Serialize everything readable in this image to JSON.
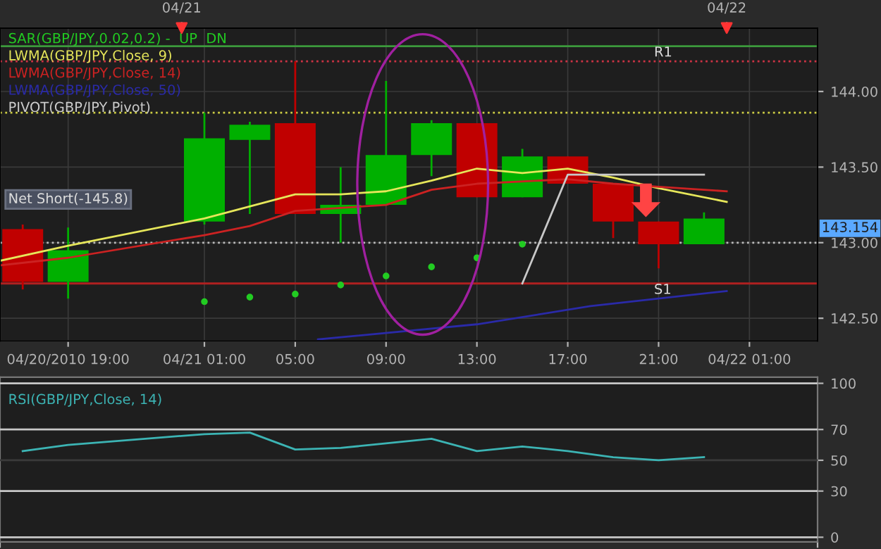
{
  "chart_data": [
    {
      "type": "candlestick",
      "x": [
        "2010-04-20T17:00",
        "2010-04-20T19:00",
        "2010-04-21T01:00",
        "2010-04-21T03:00",
        "2010-04-21T05:00",
        "2010-04-21T07:00",
        "2010-04-21T09:00",
        "2010-04-21T11:00",
        "2010-04-21T13:00",
        "2010-04-21T15:00",
        "2010-04-21T17:00",
        "2010-04-21T19:00",
        "2010-04-21T21:00",
        "2010-04-21T23:00"
      ],
      "ohlc": [
        [
          143.09,
          143.12,
          142.69,
          142.74
        ],
        [
          142.74,
          143.1,
          142.63,
          142.95
        ],
        [
          143.14,
          143.86,
          143.12,
          143.69
        ],
        [
          143.68,
          143.8,
          143.19,
          143.78
        ],
        [
          143.79,
          144.2,
          143.19,
          143.19
        ],
        [
          143.19,
          143.5,
          143.0,
          143.25
        ],
        [
          143.25,
          144.07,
          143.25,
          143.58
        ],
        [
          143.58,
          143.81,
          143.44,
          143.79
        ],
        [
          143.79,
          143.79,
          143.3,
          143.3
        ],
        [
          143.3,
          143.62,
          143.3,
          143.57
        ],
        [
          143.57,
          143.57,
          143.39,
          143.39
        ],
        [
          143.39,
          143.39,
          143.03,
          143.14
        ],
        [
          143.14,
          143.14,
          142.83,
          142.99
        ],
        [
          142.99,
          143.2,
          142.99,
          143.16
        ]
      ],
      "colors": [
        "#c00000",
        "#00b000",
        "#00b000",
        "#00b000",
        "#c00000",
        "#00b000",
        "#00b000",
        "#00b000",
        "#c00000",
        "#00b000",
        "#c00000",
        "#c00000",
        "#c00000",
        "#00b000"
      ],
      "series": [
        {
          "name": "SAR(GBP/JPY,0.02,0.2) -  UP  DN",
          "type": "scatter",
          "marker": "circle",
          "color": "#22cc22",
          "x": [
            "2010-04-21T01:00",
            "2010-04-21T03:00",
            "2010-04-21T05:00",
            "2010-04-21T07:00",
            "2010-04-21T09:00",
            "2010-04-21T11:00",
            "2010-04-21T13:00",
            "2010-04-21T15:00"
          ],
          "values": [
            142.61,
            142.64,
            142.66,
            142.72,
            142.78,
            142.84,
            142.9,
            142.99
          ]
        },
        {
          "name": "LWMA(GBP/JPY,Close, 9)",
          "type": "line",
          "color": "#e6e65a",
          "x": [
            "2010-04-20T16:00",
            "2010-04-20T19:00",
            "2010-04-21T01:00",
            "2010-04-21T05:00",
            "2010-04-21T07:00",
            "2010-04-21T09:00",
            "2010-04-21T11:00",
            "2010-04-21T13:00",
            "2010-04-21T15:00",
            "2010-04-21T17:00",
            "2010-04-21T19:00",
            "2010-04-21T21:00",
            "2010-04-22T00:00"
          ],
          "values": [
            142.88,
            142.98,
            143.16,
            143.32,
            143.32,
            143.34,
            143.41,
            143.49,
            143.46,
            143.49,
            143.43,
            143.36,
            143.27
          ]
        },
        {
          "name": "LWMA(GBP/JPY,Close, 14)",
          "type": "line",
          "color": "#cc2222",
          "x": [
            "2010-04-20T16:00",
            "2010-04-20T19:00",
            "2010-04-21T01:00",
            "2010-04-21T03:00",
            "2010-04-21T05:00",
            "2010-04-21T09:00",
            "2010-04-21T11:00",
            "2010-04-21T13:00",
            "2010-04-21T17:00",
            "2010-04-21T19:00",
            "2010-04-21T21:00",
            "2010-04-22T00:00"
          ],
          "values": [
            142.85,
            142.9,
            143.05,
            143.11,
            143.21,
            143.25,
            143.35,
            143.39,
            143.42,
            143.39,
            143.37,
            143.34
          ]
        },
        {
          "name": "LWMA(GBP/JPY,Close, 50)",
          "type": "line",
          "color": "#2a2aa8",
          "x": [
            "2010-04-21T06:00",
            "2010-04-21T13:00",
            "2010-04-21T18:00",
            "2010-04-22T00:00"
          ],
          "values": [
            142.36,
            142.46,
            142.58,
            142.68
          ]
        },
        {
          "type": "line",
          "color": "#c8c8c8",
          "x": [
            "2010-04-21T15:00",
            "2010-04-21T17:00",
            "2010-04-21T23:00"
          ],
          "values": [
            142.73,
            143.45,
            143.45
          ]
        }
      ],
      "ref_lines": [
        {
          "axis": "y",
          "value": 144.3,
          "label": "R1",
          "color": "#3c9a3c",
          "line_style": "solid"
        },
        {
          "axis": "y",
          "value": 144.2,
          "color": "#cc3344",
          "line_style": "dotted"
        },
        {
          "axis": "y",
          "value": 143.86,
          "color": "#cccc44",
          "line_style": "dotted"
        },
        {
          "axis": "y",
          "value": 143.0,
          "color": "#bbbbbb",
          "line_style": "dotted"
        },
        {
          "axis": "y",
          "value": 142.73,
          "label": "S1",
          "color": "#b02020",
          "line_style": "solid"
        }
      ],
      "annotations": [
        "PIVOT(GBP/JPY,Pivot)",
        "Net Short(-145.8)",
        "143.154"
      ],
      "xlim": [
        "2010-04-20T16:00",
        "2010-04-22T04:00"
      ],
      "xticks": [
        {
          "value": "2010-04-20T19:00",
          "label": "04/20/2010 19:00"
        },
        {
          "value": "2010-04-21T01:00",
          "label": "04/21 01:00"
        },
        {
          "value": "2010-04-21T05:00",
          "label": "05:00"
        },
        {
          "value": "2010-04-21T09:00",
          "label": "09:00"
        },
        {
          "value": "2010-04-21T13:00",
          "label": "13:00"
        },
        {
          "value": "2010-04-21T17:00",
          "label": "17:00"
        },
        {
          "value": "2010-04-21T21:00",
          "label": "21:00"
        },
        {
          "value": "2010-04-22T01:00",
          "label": "04/22 01:00"
        }
      ],
      "x2lim": [
        "2010-04-20T16:00",
        "2010-04-22T04:00"
      ],
      "x2ticks": [
        {
          "value": "2010-04-21T00:00",
          "label": "04/21"
        },
        {
          "value": "2010-04-22T00:00",
          "label": "04/22"
        }
      ],
      "ylim": [
        142.35,
        144.42
      ],
      "yticks": [
        {
          "value": 142.5,
          "label": "142.50"
        },
        {
          "value": 143.0,
          "label": "143.00"
        },
        {
          "value": 143.5,
          "label": "143.50"
        },
        {
          "value": 144.0,
          "label": "144.00"
        }
      ],
      "grid": true,
      "legend": "top left"
    },
    {
      "type": "line",
      "x": [
        "2010-04-20T17:00",
        "2010-04-20T19:00",
        "2010-04-21T01:00",
        "2010-04-21T03:00",
        "2010-04-21T05:00",
        "2010-04-21T07:00",
        "2010-04-21T09:00",
        "2010-04-21T11:00",
        "2010-04-21T13:00",
        "2010-04-21T15:00",
        "2010-04-21T17:00",
        "2010-04-21T19:00",
        "2010-04-21T21:00",
        "2010-04-21T23:00"
      ],
      "series": [
        {
          "name": "RSI(GBP/JPY,Close, 14)",
          "color": "#3cb4b4",
          "values": [
            56,
            60,
            67,
            68,
            57,
            58,
            61,
            64,
            56,
            59,
            56,
            52,
            50,
            52
          ]
        }
      ],
      "ref_lines": [
        {
          "axis": "y",
          "value": 100,
          "color": "#c8c8c8"
        },
        {
          "axis": "y",
          "value": 70,
          "color": "#c8c8c8"
        },
        {
          "axis": "y",
          "value": 50,
          "color": "#3a3a3a"
        },
        {
          "axis": "y",
          "value": 30,
          "color": "#c8c8c8"
        },
        {
          "axis": "y",
          "value": 0,
          "color": "#c8c8c8"
        }
      ],
      "xlim": [
        "2010-04-20T16:00",
        "2010-04-22T04:00"
      ],
      "ylim": [
        -3,
        104
      ],
      "yticks": [
        0,
        30,
        50,
        70,
        100
      ],
      "grid": "x",
      "legend": "top left",
      "tick_labels": "y"
    }
  ]
}
